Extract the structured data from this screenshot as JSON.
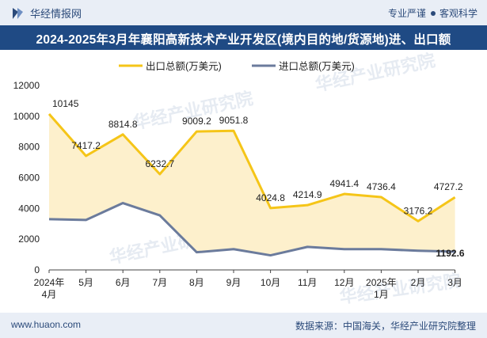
{
  "header": {
    "brand": "华经情报网",
    "tagline_a": "专业严谨",
    "tagline_b": "客观科学"
  },
  "title": "2024-2025年3月年襄阳高新技术产业开发区(境内目的地/货源地)进、出口额",
  "footer": {
    "website": "www.huaon.com",
    "source": "数据来源：中国海关，华经产业研究院整理"
  },
  "watermark": "华经产业研究院",
  "colors": {
    "export_line": "#f5c518",
    "export_fill": "#fdf0cc",
    "import_line": "#6b7b9c",
    "header_bg": "#e9eef6",
    "title_bg": "#1f4a84"
  },
  "chart_data": {
    "type": "area",
    "title": "2024-2025年3月年襄阳高新技术产业开发区(境内目的地/货源地)进、出口额",
    "categories": [
      [
        "2024年",
        "4月"
      ],
      [
        "5月"
      ],
      [
        "6月"
      ],
      [
        "7月"
      ],
      [
        "8月"
      ],
      [
        "9月"
      ],
      [
        "10月"
      ],
      [
        "11月"
      ],
      [
        "12月"
      ],
      [
        "2025年",
        "1月"
      ],
      [
        "2月"
      ],
      [
        "3月"
      ]
    ],
    "ylim": [
      0,
      12000
    ],
    "yticks": [
      0,
      2000,
      4000,
      6000,
      8000,
      10000,
      12000
    ],
    "grid": false,
    "legend_position": "top",
    "series": [
      {
        "name": "出口总额(万美元)",
        "values": [
          10145,
          7417.2,
          8814.8,
          6232.7,
          9009.2,
          9051.8,
          4024.8,
          4214.9,
          4941.4,
          4736.4,
          3176.2,
          4727.2
        ],
        "labels": [
          "10145",
          "7417.2",
          "8814.8",
          "6232.7",
          "9009.2",
          "9051.8",
          "4024.8",
          "4214.9",
          "4941.4",
          "4736.4",
          "3176.2",
          "4727.2"
        ]
      },
      {
        "name": "进口总额(万美元)",
        "values": [
          3300,
          3250,
          4350,
          3550,
          1150,
          1350,
          950,
          1500,
          1350,
          1350,
          1250,
          1192.6
        ],
        "labels": [
          "",
          "",
          "",
          "",
          "",
          "",
          "",
          "",
          "",
          "",
          "",
          "1192.6"
        ]
      }
    ]
  }
}
